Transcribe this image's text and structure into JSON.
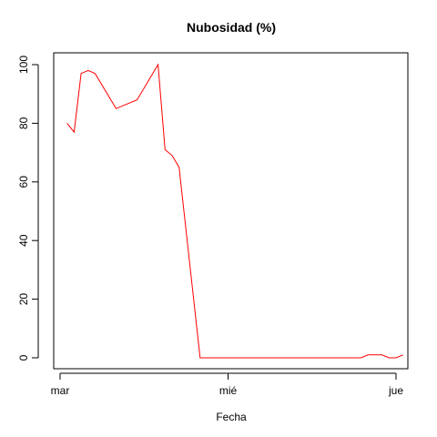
{
  "chart_data": {
    "type": "line",
    "title": "Nubosidad (%)",
    "xlabel": "Fecha",
    "ylabel": "",
    "ylim": [
      0,
      100
    ],
    "yticks": [
      0,
      20,
      40,
      60,
      80,
      100
    ],
    "x_ticks": [
      {
        "label": "mar",
        "t": 0
      },
      {
        "label": "mié",
        "t": 24
      },
      {
        "label": "jue",
        "t": 48
      }
    ],
    "grid": false,
    "series": [
      {
        "color": "#ff0000",
        "points": [
          {
            "t": 1,
            "y": 80
          },
          {
            "t": 2,
            "y": 77
          },
          {
            "t": 3,
            "y": 97
          },
          {
            "t": 4,
            "y": 98
          },
          {
            "t": 5,
            "y": 97
          },
          {
            "t": 8,
            "y": 85
          },
          {
            "t": 11,
            "y": 88
          },
          {
            "t": 14,
            "y": 100
          },
          {
            "t": 15,
            "y": 71
          },
          {
            "t": 16,
            "y": 69
          },
          {
            "t": 17,
            "y": 65
          },
          {
            "t": 20,
            "y": 0
          },
          {
            "t": 43,
            "y": 0
          },
          {
            "t": 44,
            "y": 1
          },
          {
            "t": 45,
            "y": 1
          },
          {
            "t": 46,
            "y": 1
          },
          {
            "t": 47,
            "y": 0
          },
          {
            "t": 48,
            "y": 0
          },
          {
            "t": 49,
            "y": 1
          }
        ]
      }
    ]
  }
}
